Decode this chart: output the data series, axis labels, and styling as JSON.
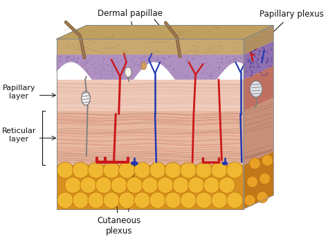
{
  "bg_color": "#ffffff",
  "stratum_color": "#c8a870",
  "stratum_top_color": "#b8986a",
  "epidermis_color": "#b090c0",
  "epi_dot_color": "#7060a0",
  "papillary_color": "#f0caba",
  "reticular_color": "#e8b8a8",
  "fat_color": "#e8a020",
  "fat_edge_color": "#c88010",
  "fat_globule_color": "#f0b830",
  "side_dermis_color": "#cc9070",
  "side_epi_color": "#8060a8",
  "labels": {
    "dermal_papillae": "Dermal papillae",
    "papillary_plexus": "Papillary plexus",
    "papillary_layer": "Papillary\nlayer",
    "reticular_layer": "Reticular\nlayer",
    "cutaneous_plexus": "Cutaneous\nplexus"
  },
  "red_vessel": "#cc1818",
  "blue_vessel": "#2035b0",
  "gray_nerve": "#808080",
  "label_fontsize": 8.5,
  "arrow_color": "#111111"
}
